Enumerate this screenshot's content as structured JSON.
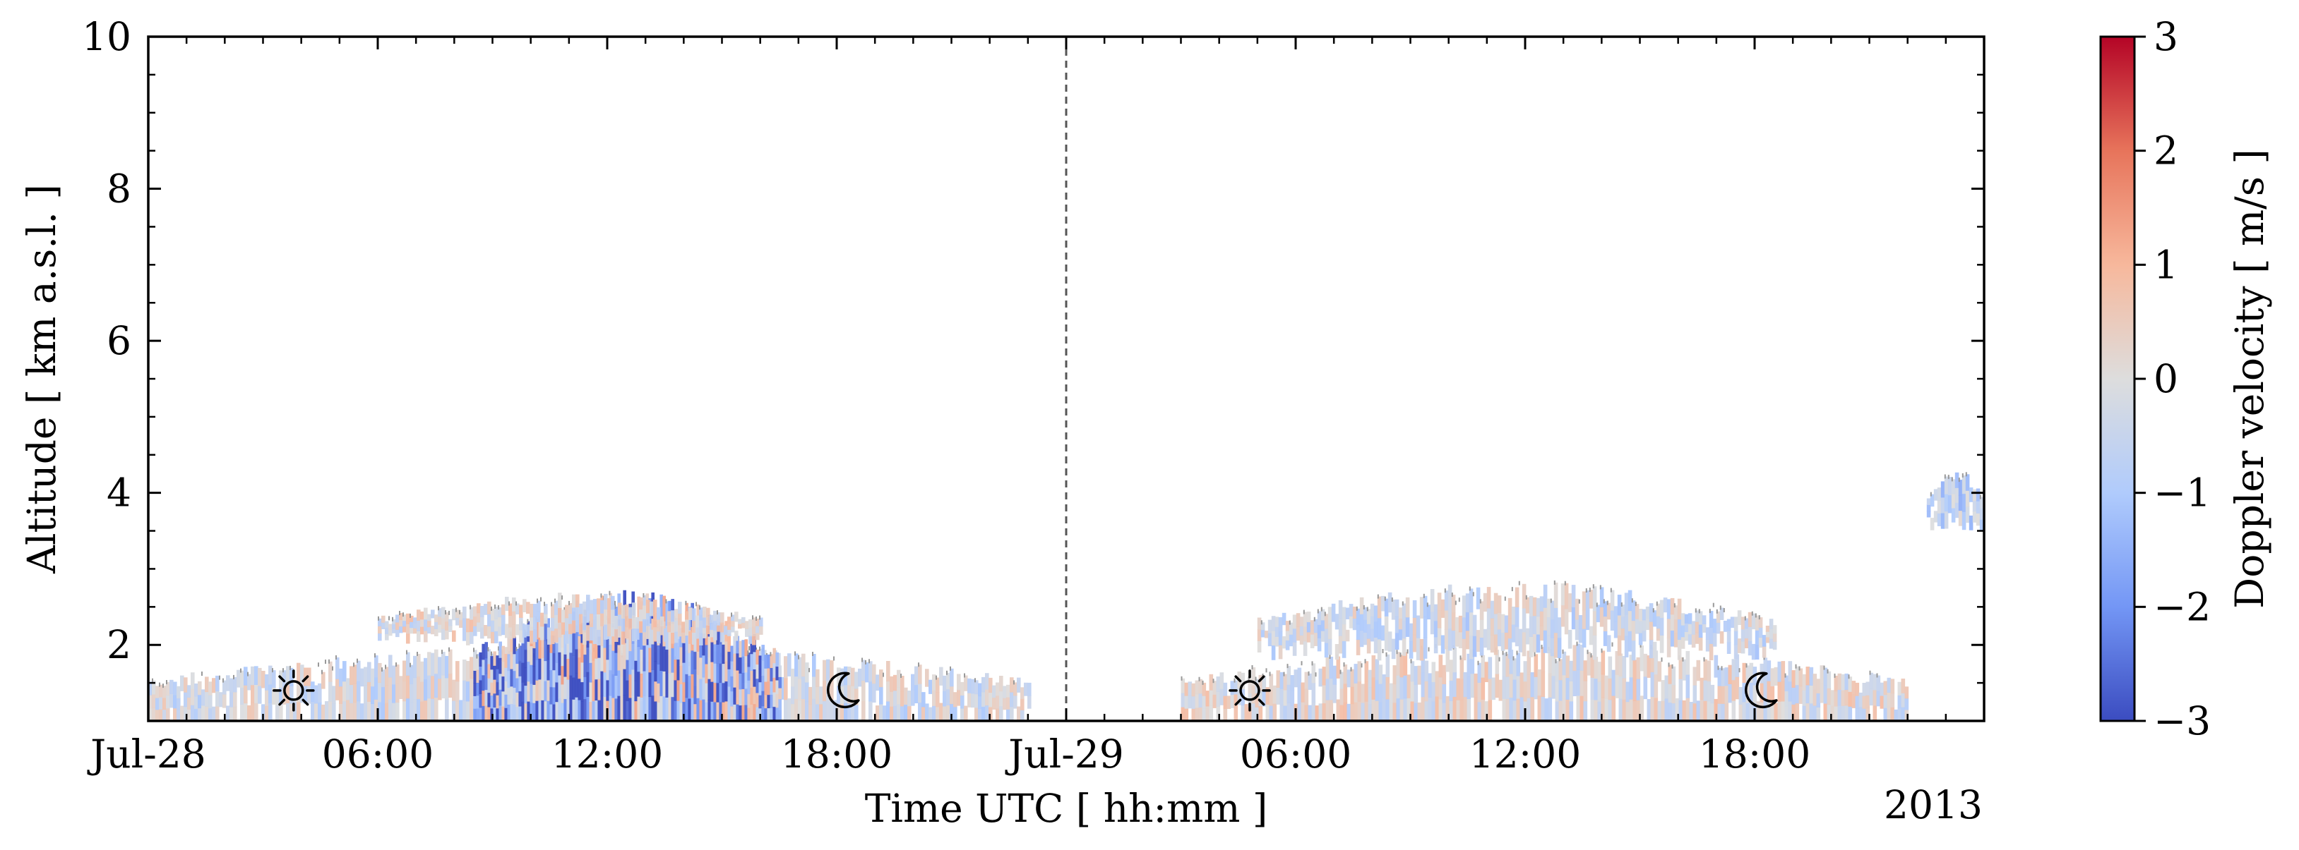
{
  "chart_data": {
    "type": "heatmap",
    "title": "",
    "xlabel": "Time UTC [ hh:mm ]",
    "ylabel": "Altitude [ km a.s.l. ]",
    "year_label": "2013",
    "x_range_hours": [
      0,
      48
    ],
    "ylim": [
      1,
      10
    ],
    "x_ticks": [
      {
        "h": 0,
        "label": "Jul-28"
      },
      {
        "h": 6,
        "label": "06:00"
      },
      {
        "h": 12,
        "label": "12:00"
      },
      {
        "h": 18,
        "label": "18:00"
      },
      {
        "h": 24,
        "label": "Jul-29"
      },
      {
        "h": 30,
        "label": "06:00"
      },
      {
        "h": 36,
        "label": "12:00"
      },
      {
        "h": 42,
        "label": "18:00"
      }
    ],
    "y_ticks": [
      2,
      4,
      6,
      8,
      10
    ],
    "day_separator_hour": 24,
    "colorbar": {
      "label": "Doppler velocity [ m/s ]",
      "range": [
        -3,
        3
      ],
      "ticks": [
        3,
        2,
        1,
        0,
        -1,
        -2,
        -3
      ],
      "tick_labels": [
        "3",
        "2",
        "1",
        "0",
        "−1",
        "−2",
        "−3"
      ],
      "colormap": "coolwarm",
      "colors": [
        "#3b4cc0",
        "#7396f5",
        "#b0cbfc",
        "#dddddd",
        "#f7b89c",
        "#e7745b",
        "#b40426"
      ]
    },
    "markers": [
      {
        "type": "sunrise",
        "icon": "sun-icon",
        "h": 3.8,
        "alt": 1.4
      },
      {
        "type": "sunset",
        "icon": "moon-icon",
        "h": 18.2,
        "alt": 1.4
      },
      {
        "type": "sunrise",
        "icon": "sun-icon",
        "h": 28.8,
        "alt": 1.4
      },
      {
        "type": "sunset",
        "icon": "moon-icon",
        "h": 42.2,
        "alt": 1.4
      }
    ],
    "echo_regions": [
      {
        "name": "boundary layer day 1",
        "h": [
          0,
          23
        ],
        "alt": [
          1.0,
          1.9
        ],
        "mean_velocity": -0.2
      },
      {
        "name": "convective updraft/downdraft zone",
        "h": [
          8.5,
          16.5
        ],
        "alt": [
          1.0,
          2.5
        ],
        "mean_velocity": -1.2
      },
      {
        "name": "elevated layer day 1",
        "h": [
          6,
          16
        ],
        "alt": [
          2.0,
          2.6
        ],
        "mean_velocity": 0.0
      },
      {
        "name": "boundary layer day 2",
        "h": [
          27,
          46
        ],
        "alt": [
          1.0,
          1.9
        ],
        "mean_velocity": 0.0
      },
      {
        "name": "elevated layer day 2",
        "h": [
          29,
          42.5
        ],
        "alt": [
          1.8,
          2.7
        ],
        "mean_velocity": -0.3
      },
      {
        "name": "mid-level cloud",
        "h": [
          46.5,
          48
        ],
        "alt": [
          3.5,
          4.2
        ],
        "mean_velocity": -0.7
      }
    ]
  }
}
